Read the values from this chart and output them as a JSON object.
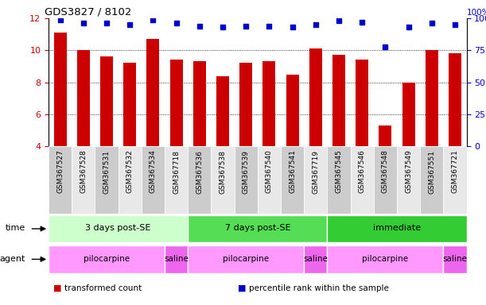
{
  "title": "GDS3827 / 8102",
  "samples": [
    "GSM367527",
    "GSM367528",
    "GSM367531",
    "GSM367532",
    "GSM367534",
    "GSM367718",
    "GSM367536",
    "GSM367538",
    "GSM367539",
    "GSM367540",
    "GSM367541",
    "GSM367719",
    "GSM367545",
    "GSM367546",
    "GSM367548",
    "GSM367549",
    "GSM367551",
    "GSM367721"
  ],
  "bar_values": [
    11.1,
    10.0,
    9.6,
    9.2,
    10.7,
    9.4,
    9.3,
    8.4,
    9.2,
    9.3,
    8.5,
    10.1,
    9.7,
    9.4,
    5.3,
    8.0,
    10.0,
    9.8
  ],
  "dot_values": [
    99,
    96,
    96,
    95,
    99,
    96,
    94,
    93,
    94,
    94,
    93,
    95,
    98,
    97,
    78,
    93,
    96,
    95
  ],
  "ylim_left": [
    4,
    12
  ],
  "ylim_right": [
    0,
    100
  ],
  "yticks_left": [
    4,
    6,
    8,
    10,
    12
  ],
  "yticks_right": [
    0,
    25,
    50,
    75,
    100
  ],
  "bar_color": "#CC0000",
  "dot_color": "#0000CC",
  "time_groups": [
    {
      "label": "3 days post-SE",
      "start": 0,
      "end": 5,
      "color": "#CCFFCC"
    },
    {
      "label": "7 days post-SE",
      "start": 6,
      "end": 11,
      "color": "#55DD55"
    },
    {
      "label": "immediate",
      "start": 12,
      "end": 17,
      "color": "#33CC33"
    }
  ],
  "agent_groups": [
    {
      "label": "pilocarpine",
      "start": 0,
      "end": 4,
      "color": "#FF99FF"
    },
    {
      "label": "saline",
      "start": 5,
      "end": 5,
      "color": "#EE66EE"
    },
    {
      "label": "pilocarpine",
      "start": 6,
      "end": 10,
      "color": "#FF99FF"
    },
    {
      "label": "saline",
      "start": 11,
      "end": 11,
      "color": "#EE66EE"
    },
    {
      "label": "pilocarpine",
      "start": 12,
      "end": 16,
      "color": "#FF99FF"
    },
    {
      "label": "saline",
      "start": 17,
      "end": 17,
      "color": "#EE66EE"
    }
  ],
  "col_bg_even": "#CCCCCC",
  "col_bg_odd": "#E8E8E8",
  "legend_items": [
    {
      "label": "transformed count",
      "color": "#CC0000"
    },
    {
      "label": "percentile rank within the sample",
      "color": "#0000CC"
    }
  ],
  "sample_label_fontsize": 6.5,
  "axis_label_color_left": "#CC0000",
  "axis_label_color_right": "#0000CC"
}
